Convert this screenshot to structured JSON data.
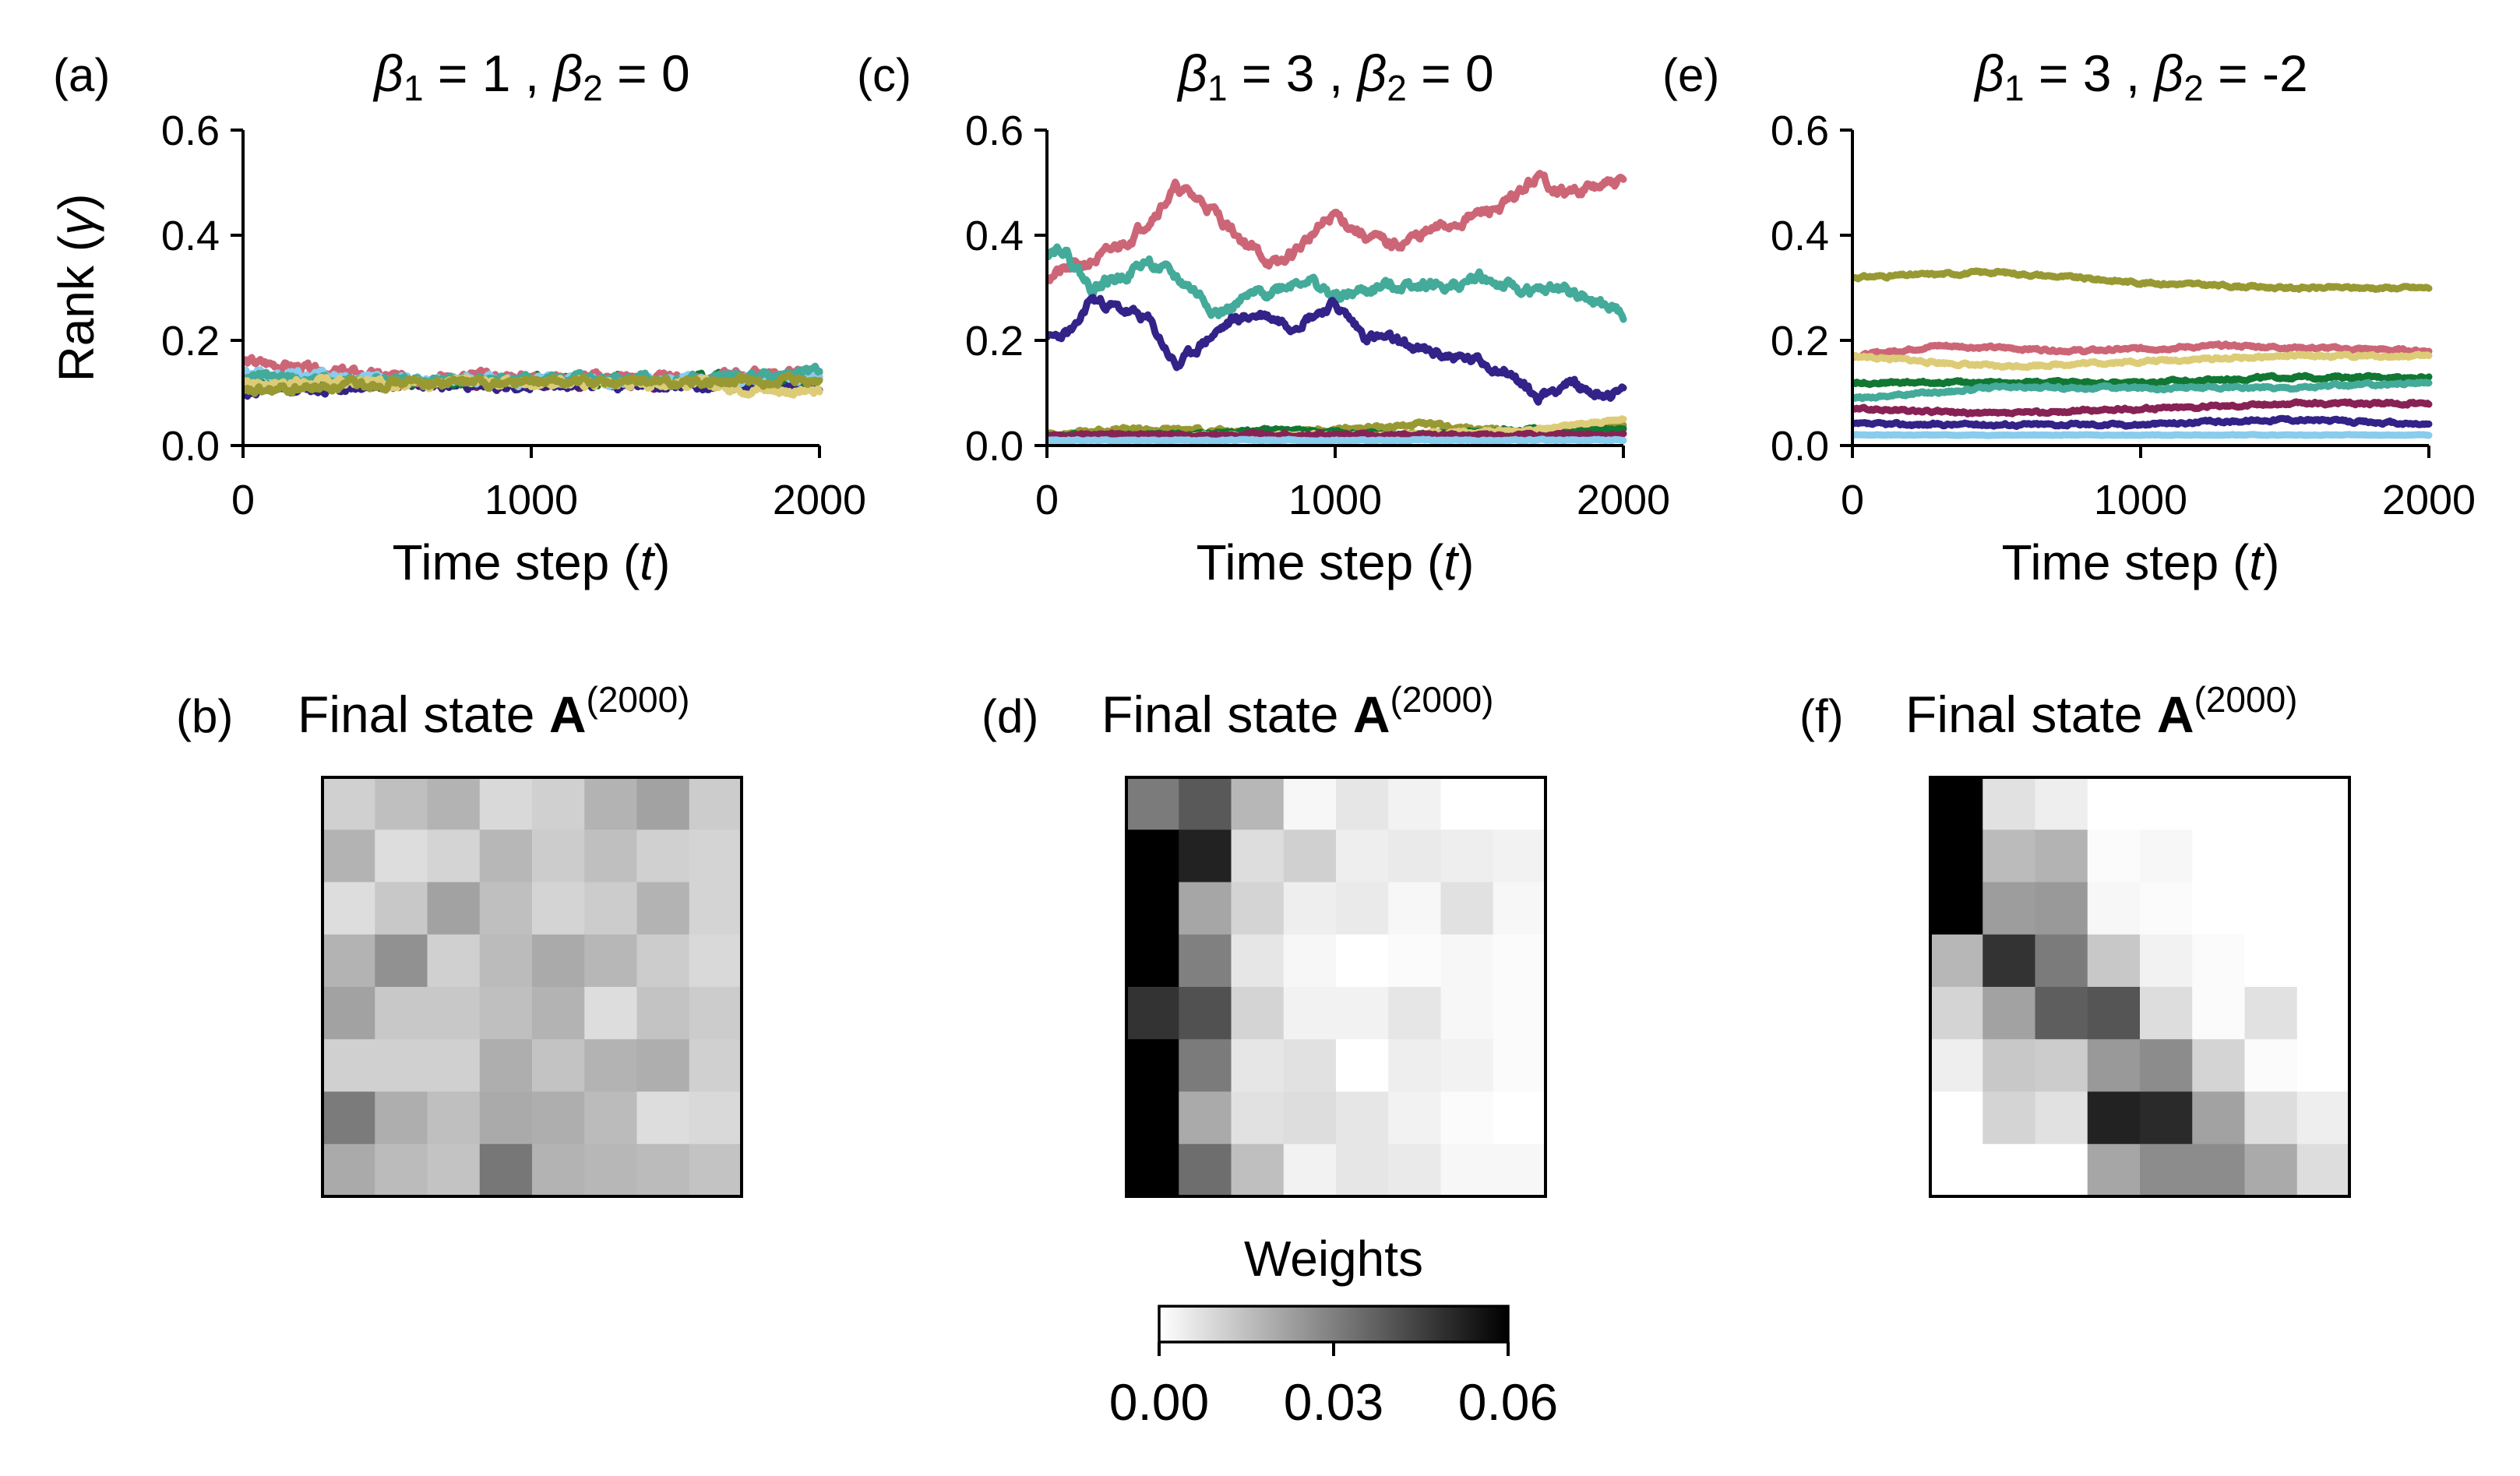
{
  "chart_data": [
    {
      "panel": "(a)",
      "type": "line",
      "title_parts": [
        "β",
        "1",
        " = 1 ,  ",
        "β",
        "2",
        " = 0"
      ],
      "xlabel": "Time step (t)",
      "ylabel": "Rank (γ)",
      "xlim": [
        0,
        2000
      ],
      "ylim": [
        0,
        0.6
      ],
      "xticks": [
        "0",
        "1000",
        "2000"
      ],
      "yticks": [
        "0.0",
        "0.2",
        "0.4",
        "0.6"
      ],
      "series": [
        {
          "color": "#882255",
          "start": 0.11,
          "end": 0.12,
          "mean": 0.12,
          "vol": 0.006,
          "seed": 11
        },
        {
          "color": "#332288",
          "start": 0.1,
          "end": 0.11,
          "mean": 0.115,
          "vol": 0.006,
          "seed": 12
        },
        {
          "color": "#117733",
          "start": 0.12,
          "end": 0.13,
          "mean": 0.125,
          "vol": 0.006,
          "seed": 13
        },
        {
          "color": "#CC6677",
          "start": 0.16,
          "end": 0.14,
          "mean": 0.13,
          "vol": 0.006,
          "seed": 14
        },
        {
          "color": "#88CCEE",
          "start": 0.14,
          "end": 0.13,
          "mean": 0.125,
          "vol": 0.006,
          "seed": 15
        },
        {
          "color": "#44AA99",
          "start": 0.13,
          "end": 0.14,
          "mean": 0.125,
          "vol": 0.006,
          "seed": 16
        },
        {
          "color": "#DDCC77",
          "start": 0.12,
          "end": 0.1,
          "mean": 0.12,
          "vol": 0.006,
          "seed": 17
        },
        {
          "color": "#999933",
          "start": 0.1,
          "end": 0.12,
          "mean": 0.12,
          "vol": 0.006,
          "seed": 18
        }
      ]
    },
    {
      "panel": "(c)",
      "type": "line",
      "title_parts": [
        "β",
        "1",
        " = 3 ,  ",
        "β",
        "2",
        " = 0"
      ],
      "xlabel": "Time step (t)",
      "ylabel": "",
      "xlim": [
        0,
        2000
      ],
      "ylim": [
        0,
        0.6
      ],
      "xticks": [
        "0",
        "1000",
        "2000"
      ],
      "yticks": [
        "0.0",
        "0.2",
        "0.4",
        "0.6"
      ],
      "series": [
        {
          "color": "#CC6677",
          "points": [
            [
              0,
              0.32
            ],
            [
              100,
              0.34
            ],
            [
              200,
              0.36
            ],
            [
              300,
              0.4
            ],
            [
              450,
              0.49
            ],
            [
              550,
              0.46
            ],
            [
              700,
              0.38
            ],
            [
              800,
              0.34
            ],
            [
              1000,
              0.44
            ],
            [
              1100,
              0.4
            ],
            [
              1200,
              0.38
            ],
            [
              1400,
              0.42
            ],
            [
              1600,
              0.46
            ],
            [
              1700,
              0.51
            ],
            [
              1800,
              0.48
            ],
            [
              1900,
              0.49
            ],
            [
              2000,
              0.5
            ]
          ],
          "vol": 0.008,
          "seed": 21
        },
        {
          "color": "#44AA99",
          "points": [
            [
              0,
              0.37
            ],
            [
              50,
              0.38
            ],
            [
              150,
              0.3
            ],
            [
              250,
              0.32
            ],
            [
              350,
              0.35
            ],
            [
              500,
              0.3
            ],
            [
              600,
              0.25
            ],
            [
              700,
              0.28
            ],
            [
              800,
              0.3
            ],
            [
              900,
              0.32
            ],
            [
              1000,
              0.28
            ],
            [
              1150,
              0.3
            ],
            [
              1300,
              0.31
            ],
            [
              1400,
              0.3
            ],
            [
              1500,
              0.32
            ],
            [
              1600,
              0.3
            ],
            [
              1700,
              0.29
            ],
            [
              1800,
              0.3
            ],
            [
              1900,
              0.27
            ],
            [
              2000,
              0.25
            ]
          ],
          "vol": 0.008,
          "seed": 22
        },
        {
          "color": "#332288",
          "points": [
            [
              0,
              0.2
            ],
            [
              100,
              0.22
            ],
            [
              150,
              0.28
            ],
            [
              250,
              0.26
            ],
            [
              350,
              0.24
            ],
            [
              450,
              0.15
            ],
            [
              550,
              0.2
            ],
            [
              650,
              0.24
            ],
            [
              750,
              0.25
            ],
            [
              850,
              0.23
            ],
            [
              1000,
              0.27
            ],
            [
              1100,
              0.21
            ],
            [
              1200,
              0.2
            ],
            [
              1300,
              0.18
            ],
            [
              1400,
              0.17
            ],
            [
              1500,
              0.16
            ],
            [
              1600,
              0.14
            ],
            [
              1700,
              0.09
            ],
            [
              1800,
              0.12
            ],
            [
              1900,
              0.1
            ],
            [
              2000,
              0.1
            ]
          ],
          "vol": 0.007,
          "seed": 23
        },
        {
          "color": "#999933",
          "points": [
            [
              0,
              0.02
            ],
            [
              200,
              0.03
            ],
            [
              500,
              0.03
            ],
            [
              800,
              0.02
            ],
            [
              1000,
              0.03
            ],
            [
              1300,
              0.04
            ],
            [
              1500,
              0.03
            ],
            [
              1700,
              0.02
            ],
            [
              2000,
              0.04
            ]
          ],
          "vol": 0.003,
          "seed": 24
        },
        {
          "color": "#117733",
          "points": [
            [
              0,
              0.02
            ],
            [
              400,
              0.02
            ],
            [
              800,
              0.03
            ],
            [
              1200,
              0.02
            ],
            [
              1600,
              0.03
            ],
            [
              2000,
              0.03
            ]
          ],
          "vol": 0.002,
          "seed": 25
        },
        {
          "color": "#DDCC77",
          "points": [
            [
              0,
              0.01
            ],
            [
              600,
              0.02
            ],
            [
              1200,
              0.02
            ],
            [
              1700,
              0.03
            ],
            [
              2000,
              0.05
            ]
          ],
          "vol": 0.002,
          "seed": 26
        },
        {
          "color": "#882255",
          "points": [
            [
              0,
              0.02
            ],
            [
              500,
              0.02
            ],
            [
              1000,
              0.02
            ],
            [
              1500,
              0.02
            ],
            [
              2000,
              0.02
            ]
          ],
          "vol": 0.002,
          "seed": 27
        },
        {
          "color": "#88CCEE",
          "points": [
            [
              0,
              0.01
            ],
            [
              1000,
              0.01
            ],
            [
              2000,
              0.01
            ]
          ],
          "vol": 0.001,
          "seed": 28
        }
      ]
    },
    {
      "panel": "(e)",
      "type": "line",
      "title_parts": [
        "β",
        "1",
        " = 3 ,  ",
        "β",
        "2",
        " = -2"
      ],
      "xlabel": "Time step (t)",
      "ylabel": "",
      "xlim": [
        0,
        2000
      ],
      "ylim": [
        0,
        0.6
      ],
      "xticks": [
        "0",
        "1000",
        "2000"
      ],
      "yticks": [
        "0.0",
        "0.2",
        "0.4",
        "0.6"
      ],
      "series": [
        {
          "color": "#999933",
          "points": [
            [
              0,
              0.32
            ],
            [
              500,
              0.33
            ],
            [
              1000,
              0.31
            ],
            [
              1500,
              0.3
            ],
            [
              2000,
              0.3
            ]
          ],
          "vol": 0.002,
          "seed": 31
        },
        {
          "color": "#CC6677",
          "points": [
            [
              0,
              0.17
            ],
            [
              300,
              0.19
            ],
            [
              800,
              0.18
            ],
            [
              1300,
              0.19
            ],
            [
              2000,
              0.18
            ]
          ],
          "vol": 0.002,
          "seed": 32
        },
        {
          "color": "#DDCC77",
          "points": [
            [
              0,
              0.17
            ],
            [
              500,
              0.15
            ],
            [
              1000,
              0.16
            ],
            [
              1500,
              0.17
            ],
            [
              2000,
              0.17
            ]
          ],
          "vol": 0.002,
          "seed": 33
        },
        {
          "color": "#117733",
          "points": [
            [
              0,
              0.12
            ],
            [
              500,
              0.12
            ],
            [
              1000,
              0.12
            ],
            [
              1500,
              0.13
            ],
            [
              2000,
              0.13
            ]
          ],
          "vol": 0.002,
          "seed": 34
        },
        {
          "color": "#44AA99",
          "points": [
            [
              0,
              0.09
            ],
            [
              500,
              0.11
            ],
            [
              1000,
              0.11
            ],
            [
              1500,
              0.11
            ],
            [
              2000,
              0.12
            ]
          ],
          "vol": 0.002,
          "seed": 35
        },
        {
          "color": "#882255",
          "points": [
            [
              0,
              0.07
            ],
            [
              500,
              0.06
            ],
            [
              1000,
              0.07
            ],
            [
              1500,
              0.08
            ],
            [
              2000,
              0.08
            ]
          ],
          "vol": 0.002,
          "seed": 36
        },
        {
          "color": "#332288",
          "points": [
            [
              0,
              0.04
            ],
            [
              500,
              0.04
            ],
            [
              1000,
              0.04
            ],
            [
              1500,
              0.05
            ],
            [
              2000,
              0.04
            ]
          ],
          "vol": 0.002,
          "seed": 37
        },
        {
          "color": "#88CCEE",
          "points": [
            [
              0,
              0.02
            ],
            [
              1000,
              0.02
            ],
            [
              2000,
              0.02
            ]
          ],
          "vol": 0.0005,
          "seed": 38
        }
      ]
    },
    {
      "panel": "(b)",
      "type": "heatmap",
      "title_parts": [
        "Final state ",
        "A",
        "(2000)"
      ],
      "vmin": 0,
      "vmax": 0.06,
      "values": [
        [
          0.011,
          0.015,
          0.018,
          0.009,
          0.011,
          0.018,
          0.022,
          0.012
        ],
        [
          0.018,
          0.008,
          0.01,
          0.017,
          0.012,
          0.015,
          0.011,
          0.01
        ],
        [
          0.008,
          0.013,
          0.022,
          0.015,
          0.01,
          0.012,
          0.018,
          0.01
        ],
        [
          0.018,
          0.026,
          0.011,
          0.016,
          0.02,
          0.017,
          0.012,
          0.009
        ],
        [
          0.022,
          0.013,
          0.013,
          0.015,
          0.018,
          0.008,
          0.014,
          0.012
        ],
        [
          0.011,
          0.011,
          0.011,
          0.019,
          0.014,
          0.018,
          0.019,
          0.011
        ],
        [
          0.031,
          0.019,
          0.015,
          0.02,
          0.019,
          0.016,
          0.008,
          0.009
        ],
        [
          0.02,
          0.016,
          0.014,
          0.032,
          0.018,
          0.017,
          0.016,
          0.014
        ]
      ]
    },
    {
      "panel": "(d)",
      "type": "heatmap",
      "title_parts": [
        "Final state ",
        "A",
        "(2000)"
      ],
      "vmin": 0,
      "vmax": 0.06,
      "values": [
        [
          0.031,
          0.039,
          0.017,
          0.002,
          0.006,
          0.003,
          0.0,
          0.0
        ],
        [
          0.06,
          0.052,
          0.008,
          0.011,
          0.004,
          0.005,
          0.004,
          0.003
        ],
        [
          0.06,
          0.021,
          0.01,
          0.004,
          0.005,
          0.002,
          0.007,
          0.002
        ],
        [
          0.06,
          0.03,
          0.006,
          0.002,
          0.0,
          0.001,
          0.002,
          0.001
        ],
        [
          0.048,
          0.041,
          0.01,
          0.003,
          0.003,
          0.006,
          0.002,
          0.001
        ],
        [
          0.06,
          0.031,
          0.006,
          0.007,
          0.0,
          0.004,
          0.003,
          0.001
        ],
        [
          0.06,
          0.02,
          0.007,
          0.008,
          0.006,
          0.003,
          0.001,
          0.0
        ],
        [
          0.06,
          0.034,
          0.015,
          0.003,
          0.006,
          0.005,
          0.002,
          0.002
        ]
      ]
    },
    {
      "panel": "(f)",
      "type": "heatmap",
      "title_parts": [
        "Final state ",
        "A",
        "(2000)"
      ],
      "vmin": 0,
      "vmax": 0.06,
      "values": [
        [
          0.06,
          0.007,
          0.004,
          0.0,
          0.0,
          0.0,
          0.0,
          0.0
        ],
        [
          0.06,
          0.016,
          0.018,
          0.001,
          0.002,
          0.0,
          0.0,
          0.0
        ],
        [
          0.06,
          0.023,
          0.024,
          0.002,
          0.001,
          0.0,
          0.0,
          0.0
        ],
        [
          0.017,
          0.048,
          0.031,
          0.013,
          0.003,
          0.001,
          0.0,
          0.0
        ],
        [
          0.01,
          0.022,
          0.038,
          0.04,
          0.008,
          0.001,
          0.007,
          0.0
        ],
        [
          0.004,
          0.013,
          0.012,
          0.024,
          0.027,
          0.01,
          0.001,
          0.0
        ],
        [
          0.0,
          0.01,
          0.007,
          0.052,
          0.05,
          0.022,
          0.008,
          0.004
        ],
        [
          0.0,
          0.0,
          0.0,
          0.021,
          0.027,
          0.027,
          0.02,
          0.008
        ]
      ]
    }
  ],
  "colorbar": {
    "title": "Weights",
    "ticks": [
      "0.00",
      "0.03",
      "0.06"
    ],
    "tick_values": [
      0,
      0.03,
      0.06
    ],
    "vmin": 0,
    "vmax": 0.06
  }
}
